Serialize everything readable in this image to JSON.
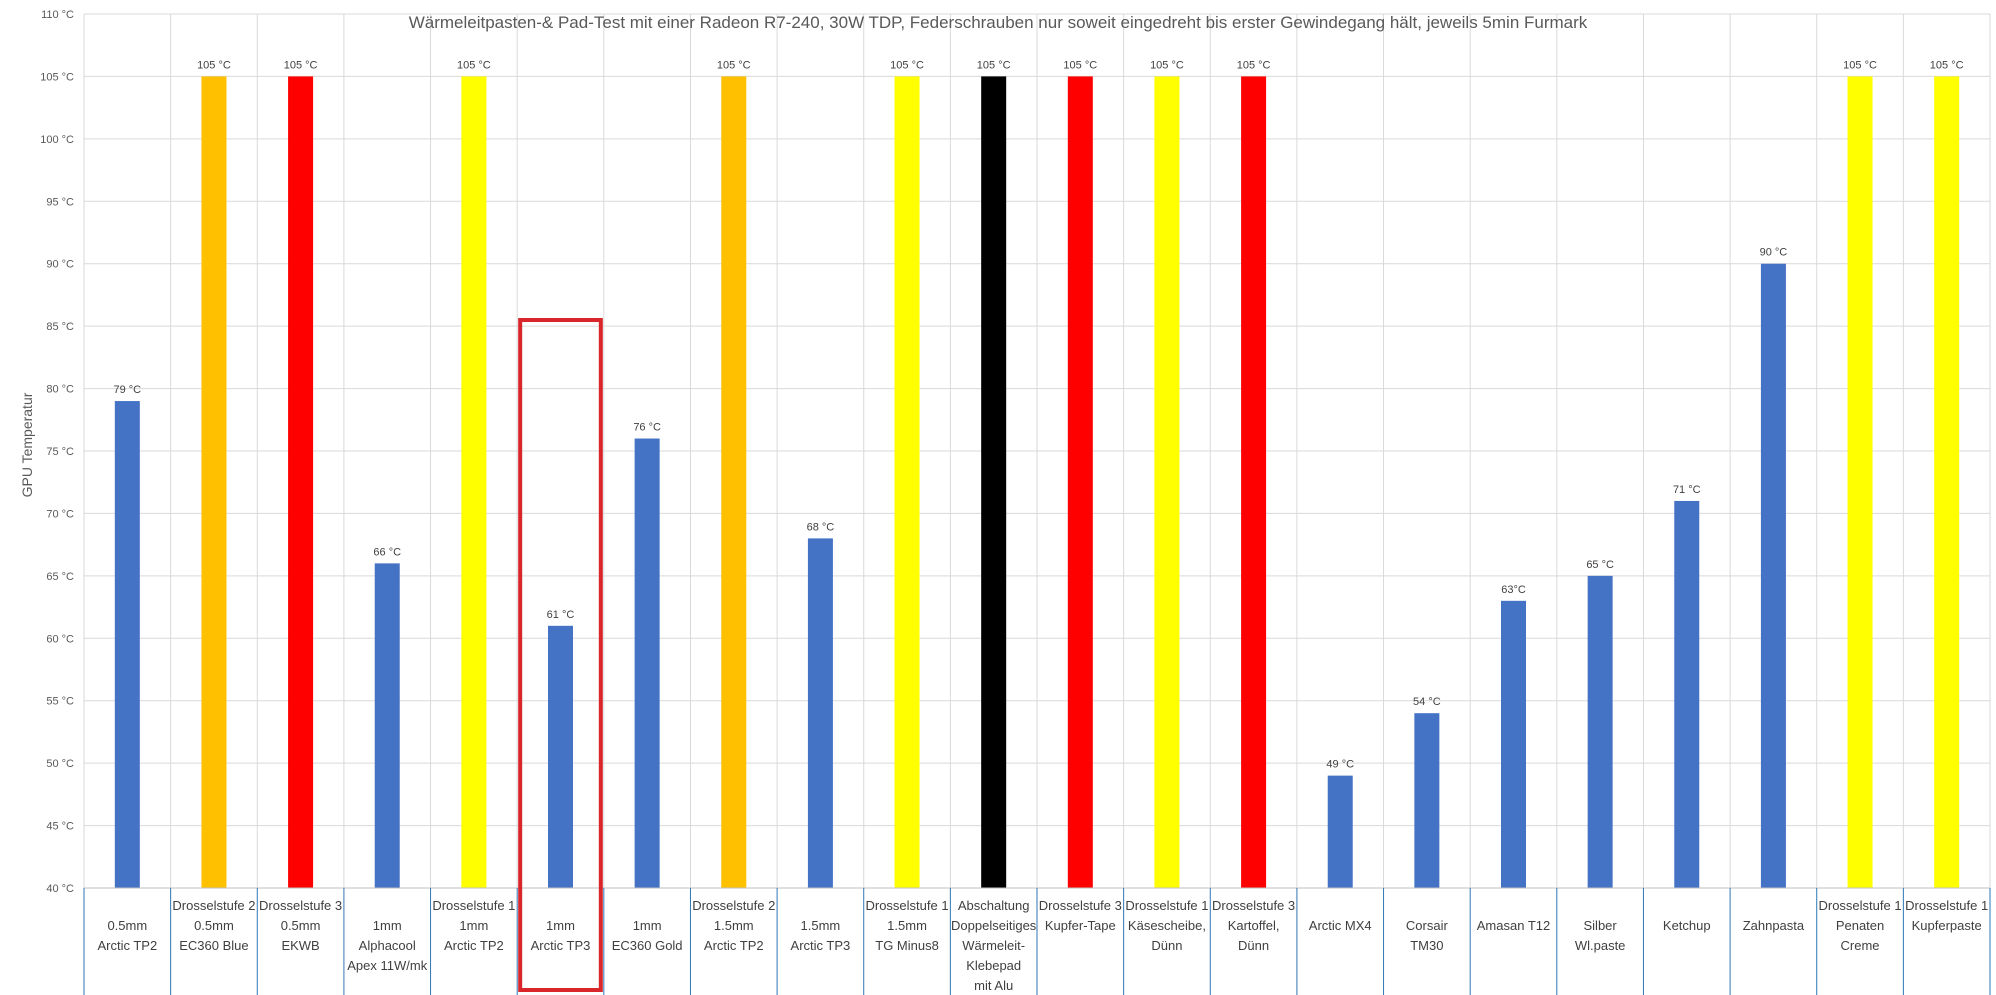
{
  "chart_data": {
    "type": "bar",
    "title": "Wärmeleitpasten-& Pad-Test mit einer Radeon R7-240, 30W TDP, Federschrauben nur soweit eingedreht bis erster Gewindegang hält, jeweils 5min Furmark",
    "ylabel": "GPU Temperatur",
    "xlabel": "",
    "ylim": [
      40,
      110
    ],
    "ytick_step": 5,
    "ytick_suffix": " °C",
    "grid": true,
    "colors": {
      "blue": "#4472C4",
      "orange": "#FFC000",
      "red": "#FF0000",
      "yellow": "#FFFF00",
      "black": "#000000",
      "highlight": "#D9262A",
      "axis_table": "#2E75B6"
    },
    "highlight_category_index": 5,
    "categories": [
      {
        "lines": [
          "",
          "0.5mm",
          "Arctic TP2"
        ],
        "value": 79,
        "label": "79 °C",
        "color": "blue"
      },
      {
        "lines": [
          "Drosselstufe 2",
          "0.5mm",
          "EC360 Blue"
        ],
        "value": 105,
        "label": "105 °C",
        "color": "orange"
      },
      {
        "lines": [
          "Drosselstufe 3",
          "0.5mm",
          "EKWB"
        ],
        "value": 105,
        "label": "105 °C",
        "color": "red"
      },
      {
        "lines": [
          "",
          "1mm",
          "Alphacool",
          "Apex 11W/mk"
        ],
        "value": 66,
        "label": "66 °C",
        "color": "blue"
      },
      {
        "lines": [
          "Drosselstufe 1",
          "1mm",
          "Arctic TP2"
        ],
        "value": 105,
        "label": "105 °C",
        "color": "yellow"
      },
      {
        "lines": [
          "",
          "1mm",
          "Arctic TP3"
        ],
        "value": 61,
        "label": "61 °C",
        "color": "blue"
      },
      {
        "lines": [
          "",
          "1mm",
          "EC360 Gold"
        ],
        "value": 76,
        "label": "76 °C",
        "color": "blue"
      },
      {
        "lines": [
          "Drosselstufe 2",
          "1.5mm",
          "Arctic TP2"
        ],
        "value": 105,
        "label": "105 °C",
        "color": "orange"
      },
      {
        "lines": [
          "",
          "1.5mm",
          "Arctic TP3"
        ],
        "value": 68,
        "label": "68 °C",
        "color": "blue"
      },
      {
        "lines": [
          "Drosselstufe 1",
          "1.5mm",
          "TG Minus8"
        ],
        "value": 105,
        "label": "105 °C",
        "color": "yellow"
      },
      {
        "lines": [
          "Abschaltung",
          "Doppelseitiges",
          "Wärmeleit-",
          "Klebepad",
          "mit Alu"
        ],
        "value": 105,
        "label": "105 °C",
        "color": "black"
      },
      {
        "lines": [
          "Drosselstufe 3",
          "Kupfer-Tape"
        ],
        "value": 105,
        "label": "105 °C",
        "color": "red"
      },
      {
        "lines": [
          "Drosselstufe 1",
          "Käsescheibe,",
          "Dünn"
        ],
        "value": 105,
        "label": "105 °C",
        "color": "yellow"
      },
      {
        "lines": [
          "Drosselstufe 3",
          "Kartoffel,",
          "Dünn"
        ],
        "value": 105,
        "label": "105 °C",
        "color": "red"
      },
      {
        "lines": [
          "",
          "Arctic MX4"
        ],
        "value": 49,
        "label": "49 °C",
        "color": "blue"
      },
      {
        "lines": [
          "",
          "Corsair",
          "TM30"
        ],
        "value": 54,
        "label": "54 °C",
        "color": "blue"
      },
      {
        "lines": [
          "",
          "Amasan T12"
        ],
        "value": 63,
        "label": "63°C",
        "color": "blue"
      },
      {
        "lines": [
          "",
          "Silber",
          "Wl.paste"
        ],
        "value": 65,
        "label": "65 °C",
        "color": "blue"
      },
      {
        "lines": [
          "",
          "Ketchup"
        ],
        "value": 71,
        "label": "71 °C",
        "color": "blue"
      },
      {
        "lines": [
          "",
          "Zahnpasta"
        ],
        "value": 90,
        "label": "90 °C",
        "color": "blue"
      },
      {
        "lines": [
          "Drosselstufe 1",
          "Penaten",
          "Creme"
        ],
        "value": 105,
        "label": "105 °C",
        "color": "yellow"
      },
      {
        "lines": [
          "Drosselstufe 1",
          "Kupferpaste"
        ],
        "value": 105,
        "label": "105 °C",
        "color": "yellow"
      }
    ]
  }
}
